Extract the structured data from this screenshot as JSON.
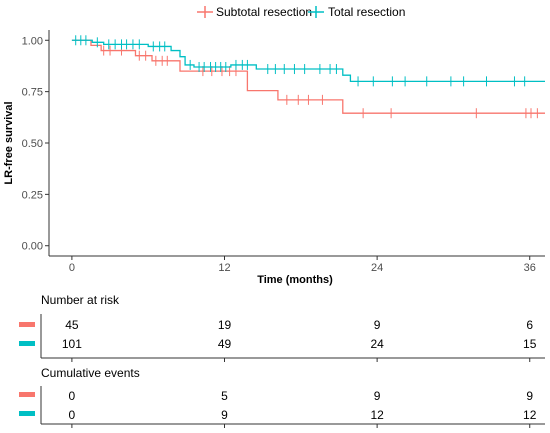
{
  "chart_data": {
    "type": "line",
    "title": "",
    "xlabel": "Time (months)",
    "ylabel": "LR-free survival",
    "xlim": [
      -1.8,
      37.2
    ],
    "ylim": [
      -0.05,
      1.05
    ],
    "x_ticks": [
      0,
      12,
      24,
      36
    ],
    "x_tick_labels": [
      "0",
      "12",
      "24",
      "36"
    ],
    "y_ticks": [
      0,
      0.25,
      0.5,
      0.75,
      1.0
    ],
    "y_tick_labels": [
      "0.00",
      "0.25",
      "0.50",
      "0.75",
      "1.00"
    ],
    "grid": false,
    "legend_position": "top",
    "series": [
      {
        "name": "Subtotal resection",
        "color": "#F8766D",
        "steps": [
          {
            "x": 0,
            "y": 1.0
          },
          {
            "x": 1.5,
            "y": 0.975
          },
          {
            "x": 2.3,
            "y": 0.95
          },
          {
            "x": 5.0,
            "y": 0.925
          },
          {
            "x": 6.3,
            "y": 0.9
          },
          {
            "x": 8.5,
            "y": 0.85
          },
          {
            "x": 13.8,
            "y": 0.755
          },
          {
            "x": 16.2,
            "y": 0.71
          },
          {
            "x": 21.3,
            "y": 0.645
          },
          {
            "x": 37.2,
            "y": 0.645
          }
        ],
        "censored": [
          {
            "x": 2.5,
            "y": 0.95
          },
          {
            "x": 3.0,
            "y": 0.95
          },
          {
            "x": 3.9,
            "y": 0.95
          },
          {
            "x": 5.3,
            "y": 0.925
          },
          {
            "x": 5.8,
            "y": 0.925
          },
          {
            "x": 6.6,
            "y": 0.9
          },
          {
            "x": 7.1,
            "y": 0.9
          },
          {
            "x": 7.5,
            "y": 0.9
          },
          {
            "x": 10.3,
            "y": 0.85
          },
          {
            "x": 11.0,
            "y": 0.85
          },
          {
            "x": 11.8,
            "y": 0.85
          },
          {
            "x": 12.4,
            "y": 0.85
          },
          {
            "x": 12.9,
            "y": 0.85
          },
          {
            "x": 16.9,
            "y": 0.71
          },
          {
            "x": 17.8,
            "y": 0.71
          },
          {
            "x": 18.6,
            "y": 0.71
          },
          {
            "x": 19.7,
            "y": 0.71
          },
          {
            "x": 22.9,
            "y": 0.645
          },
          {
            "x": 25.1,
            "y": 0.645
          },
          {
            "x": 31.8,
            "y": 0.645
          },
          {
            "x": 35.7,
            "y": 0.645
          },
          {
            "x": 36.1,
            "y": 0.645
          },
          {
            "x": 36.6,
            "y": 0.645
          }
        ]
      },
      {
        "name": "Total resection",
        "color": "#00BFC4",
        "steps": [
          {
            "x": 0,
            "y": 1.0
          },
          {
            "x": 1.6,
            "y": 0.99
          },
          {
            "x": 2.5,
            "y": 0.98
          },
          {
            "x": 6.0,
            "y": 0.97
          },
          {
            "x": 7.8,
            "y": 0.95
          },
          {
            "x": 8.5,
            "y": 0.92
          },
          {
            "x": 8.9,
            "y": 0.88
          },
          {
            "x": 9.6,
            "y": 0.87
          },
          {
            "x": 12.5,
            "y": 0.88
          },
          {
            "x": 14.5,
            "y": 0.86
          },
          {
            "x": 21.3,
            "y": 0.83
          },
          {
            "x": 21.9,
            "y": 0.8
          },
          {
            "x": 37.2,
            "y": 0.8
          }
        ],
        "censored": [
          {
            "x": 0.3,
            "y": 1.0
          },
          {
            "x": 0.7,
            "y": 1.0
          },
          {
            "x": 1.1,
            "y": 1.0
          },
          {
            "x": 2.0,
            "y": 0.99
          },
          {
            "x": 2.9,
            "y": 0.98
          },
          {
            "x": 3.4,
            "y": 0.98
          },
          {
            "x": 3.9,
            "y": 0.98
          },
          {
            "x": 4.3,
            "y": 0.98
          },
          {
            "x": 4.8,
            "y": 0.98
          },
          {
            "x": 5.3,
            "y": 0.98
          },
          {
            "x": 6.4,
            "y": 0.97
          },
          {
            "x": 6.9,
            "y": 0.97
          },
          {
            "x": 7.3,
            "y": 0.97
          },
          {
            "x": 9.3,
            "y": 0.88
          },
          {
            "x": 10.0,
            "y": 0.87
          },
          {
            "x": 10.4,
            "y": 0.87
          },
          {
            "x": 10.9,
            "y": 0.87
          },
          {
            "x": 11.3,
            "y": 0.87
          },
          {
            "x": 11.7,
            "y": 0.87
          },
          {
            "x": 12.1,
            "y": 0.87
          },
          {
            "x": 12.9,
            "y": 0.88
          },
          {
            "x": 13.4,
            "y": 0.88
          },
          {
            "x": 13.8,
            "y": 0.88
          },
          {
            "x": 15.4,
            "y": 0.86
          },
          {
            "x": 16.0,
            "y": 0.86
          },
          {
            "x": 16.7,
            "y": 0.86
          },
          {
            "x": 17.5,
            "y": 0.86
          },
          {
            "x": 18.3,
            "y": 0.86
          },
          {
            "x": 19.5,
            "y": 0.86
          },
          {
            "x": 20.3,
            "y": 0.86
          },
          {
            "x": 20.8,
            "y": 0.86
          },
          {
            "x": 22.5,
            "y": 0.8
          },
          {
            "x": 23.7,
            "y": 0.8
          },
          {
            "x": 25.2,
            "y": 0.8
          },
          {
            "x": 26.2,
            "y": 0.8
          },
          {
            "x": 27.9,
            "y": 0.8
          },
          {
            "x": 29.8,
            "y": 0.8
          },
          {
            "x": 30.8,
            "y": 0.8
          },
          {
            "x": 32.6,
            "y": 0.8
          },
          {
            "x": 34.8,
            "y": 0.8
          },
          {
            "x": 35.6,
            "y": 0.8
          }
        ]
      }
    ],
    "risk_table": {
      "title": "Number at risk",
      "times": [
        0,
        12,
        24,
        36
      ],
      "rows": [
        {
          "name": "Subtotal resection",
          "color": "#F8766D",
          "values": [
            "45",
            "19",
            "9",
            "6"
          ]
        },
        {
          "name": "Total resection",
          "color": "#00BFC4",
          "values": [
            "101",
            "49",
            "24",
            "15"
          ]
        }
      ]
    },
    "events_table": {
      "title": "Cumulative events",
      "times": [
        0,
        12,
        24,
        36
      ],
      "rows": [
        {
          "name": "Subtotal resection",
          "color": "#F8766D",
          "values": [
            "0",
            "5",
            "9",
            "9"
          ]
        },
        {
          "name": "Total resection",
          "color": "#00BFC4",
          "values": [
            "0",
            "9",
            "12",
            "12"
          ]
        }
      ]
    }
  }
}
